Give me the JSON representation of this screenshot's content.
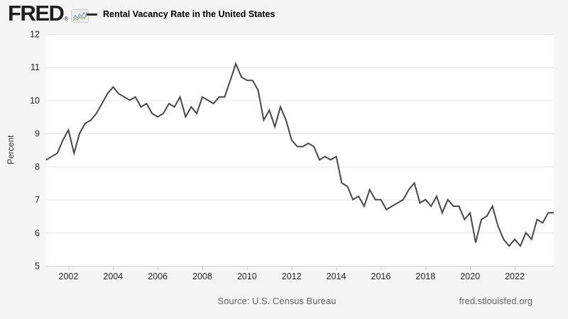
{
  "header": {
    "logo_text": "FRED",
    "registered_mark": "®",
    "series_title": "Rental Vacancy Rate in the United States"
  },
  "footer": {
    "source": "Source: U.S. Census Bureau",
    "site": "fred.stlouisfed.org"
  },
  "colors": {
    "page_bg": "#f5f5f5",
    "plot_bg": "#ffffff",
    "line": "#474747",
    "grid": "#e6e6e6",
    "axis": "#ccd6eb",
    "tick_label": "#252525",
    "footer_text": "#666666"
  },
  "chart_data": {
    "type": "line",
    "title": "Rental Vacancy Rate in the United States",
    "ylabel": "Percent",
    "xlabel": "",
    "ylim": [
      5,
      12
    ],
    "y_ticks": [
      5,
      6,
      7,
      8,
      9,
      10,
      11,
      12
    ],
    "x_ticks": [
      2002,
      2004,
      2006,
      2008,
      2010,
      2012,
      2014,
      2016,
      2018,
      2020,
      2022
    ],
    "x_range": [
      2001.0,
      2023.75
    ],
    "x_start": 2001.0,
    "x_step": 0.25,
    "frequency": "quarterly",
    "grid": "horizontal",
    "legend_position": "top-left",
    "series": [
      {
        "name": "Rental Vacancy Rate in the United States",
        "units": "Percent",
        "values": [
          8.2,
          8.3,
          8.4,
          8.8,
          9.1,
          8.4,
          9.0,
          9.3,
          9.4,
          9.6,
          9.9,
          10.2,
          10.4,
          10.2,
          10.1,
          10.0,
          10.1,
          9.8,
          9.9,
          9.6,
          9.5,
          9.6,
          9.9,
          9.8,
          10.1,
          9.5,
          9.8,
          9.6,
          10.1,
          10.0,
          9.9,
          10.1,
          10.1,
          10.6,
          11.1,
          10.7,
          10.6,
          10.6,
          10.3,
          9.4,
          9.7,
          9.2,
          9.8,
          9.4,
          8.8,
          8.6,
          8.6,
          8.7,
          8.6,
          8.2,
          8.3,
          8.2,
          8.3,
          7.5,
          7.4,
          7.0,
          7.1,
          6.8,
          7.3,
          7.0,
          7.0,
          6.7,
          6.8,
          6.9,
          7.0,
          7.3,
          7.5,
          6.9,
          7.0,
          6.8,
          7.1,
          6.6,
          7.0,
          6.8,
          6.8,
          6.4,
          6.6,
          5.7,
          6.4,
          6.5,
          6.8,
          6.2,
          5.8,
          5.6,
          5.8,
          5.6,
          6.0,
          5.8,
          6.4,
          6.3,
          6.6,
          6.6
        ]
      }
    ]
  }
}
